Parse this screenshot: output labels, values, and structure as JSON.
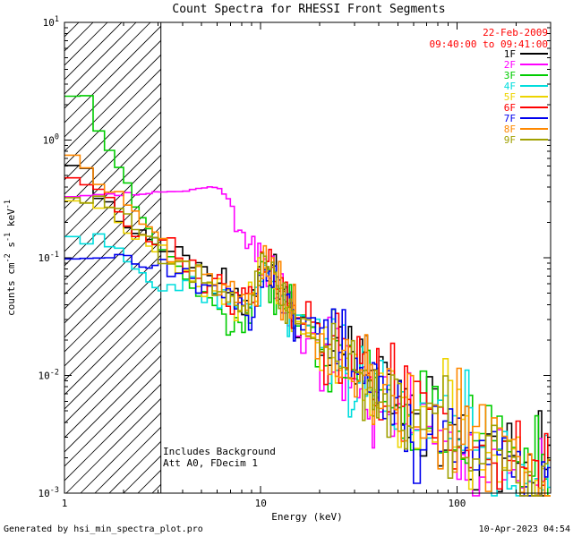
{
  "footer": {
    "left": "Generated by hsi_min_spectra_plot.pro",
    "right": "10-Apr-2023 04:54"
  },
  "chart_data": {
    "type": "line",
    "subtype": "stairstep-spectra",
    "title": "Count Spectra for RHESSI Front Segments",
    "xlabel": "Energy (keV)",
    "ylabel": "counts cm^-2 s^-1 keV^-1",
    "xscale": "log",
    "yscale": "log",
    "xlim": [
      1,
      300
    ],
    "ylim": [
      0.001,
      10
    ],
    "xticks": [
      1,
      10,
      100
    ],
    "yticks_exp": [
      -3,
      -2,
      -1,
      0,
      1
    ],
    "grid": false,
    "legend_position": "top-right-inside",
    "observation": {
      "date": "22-Feb-2009",
      "time_range": "09:40:00 to 09:41:00"
    },
    "annotations": {
      "line1": "Includes Background",
      "line2": "Att A0, FDecim 1"
    },
    "hatch_region": {
      "from": 1,
      "to": 3.1
    },
    "bins": [
      {
        "to": 3,
        "step": 0.2
      },
      {
        "to": 15,
        "step": 0.3334
      },
      {
        "to": 40,
        "step": 1
      },
      {
        "to": 60,
        "step": 2
      },
      {
        "to": 120,
        "step": 5
      },
      {
        "to": 300,
        "step": 10
      }
    ],
    "noise": {
      "breaks": [
        3,
        9,
        20,
        60
      ],
      "sigmas": [
        0.07,
        0.15,
        0.25,
        0.42,
        0.52
      ]
    },
    "series": [
      {
        "name": "1F",
        "color": "#000000",
        "anchors": [
          [
            1.0,
            0.62
          ],
          [
            1.3,
            0.55
          ],
          [
            1.6,
            0.32
          ],
          [
            2.0,
            0.18
          ],
          [
            2.5,
            0.16
          ],
          [
            3.0,
            0.14
          ],
          [
            4.0,
            0.1
          ],
          [
            5.0,
            0.072
          ],
          [
            6.5,
            0.055
          ],
          [
            8.0,
            0.045
          ],
          [
            9.3,
            0.05
          ],
          [
            10.5,
            0.1
          ],
          [
            11.5,
            0.07
          ],
          [
            13,
            0.05
          ],
          [
            15,
            0.035
          ],
          [
            20,
            0.024
          ],
          [
            30,
            0.013
          ],
          [
            50,
            0.0065
          ],
          [
            80,
            0.004
          ],
          [
            120,
            0.0027
          ],
          [
            200,
            0.0016
          ],
          [
            300,
            0.0011
          ]
        ]
      },
      {
        "name": "2F",
        "color": "#FF00FF",
        "smooth_below": 7.2,
        "anchors": [
          [
            1.0,
            0.33
          ],
          [
            1.5,
            0.34
          ],
          [
            2.5,
            0.35
          ],
          [
            3.5,
            0.36
          ],
          [
            4.5,
            0.38
          ],
          [
            5.5,
            0.4
          ],
          [
            6.2,
            0.38
          ],
          [
            7.0,
            0.3
          ],
          [
            7.8,
            0.2
          ],
          [
            8.5,
            0.13
          ],
          [
            9.3,
            0.09
          ],
          [
            10.5,
            0.095
          ],
          [
            11.5,
            0.065
          ],
          [
            13,
            0.045
          ],
          [
            15,
            0.03
          ],
          [
            20,
            0.018
          ],
          [
            30,
            0.01
          ],
          [
            50,
            0.005
          ],
          [
            80,
            0.003
          ],
          [
            120,
            0.0022
          ],
          [
            200,
            0.0013
          ],
          [
            300,
            0.001
          ]
        ]
      },
      {
        "name": "3F",
        "color": "#00CC00",
        "anchors": [
          [
            1.0,
            1.8
          ],
          [
            1.15,
            3.2
          ],
          [
            1.3,
            2.2
          ],
          [
            1.5,
            1.2
          ],
          [
            1.7,
            0.8
          ],
          [
            2.0,
            0.5
          ],
          [
            2.3,
            0.28
          ],
          [
            2.7,
            0.17
          ],
          [
            3.2,
            0.11
          ],
          [
            4.0,
            0.065
          ],
          [
            5.0,
            0.045
          ],
          [
            6.5,
            0.032
          ],
          [
            8.0,
            0.026
          ],
          [
            9.3,
            0.035
          ],
          [
            10.5,
            0.085
          ],
          [
            11.5,
            0.06
          ],
          [
            13,
            0.045
          ],
          [
            15,
            0.03
          ],
          [
            20,
            0.02
          ],
          [
            30,
            0.011
          ],
          [
            50,
            0.0058
          ],
          [
            80,
            0.0036
          ],
          [
            120,
            0.0025
          ],
          [
            200,
            0.0015
          ],
          [
            300,
            0.001
          ]
        ]
      },
      {
        "name": "4F",
        "color": "#00DDDD",
        "anchors": [
          [
            1.0,
            0.17
          ],
          [
            1.4,
            0.155
          ],
          [
            1.8,
            0.12
          ],
          [
            2.2,
            0.09
          ],
          [
            2.8,
            0.062
          ],
          [
            3.5,
            0.075
          ],
          [
            4.5,
            0.06
          ],
          [
            6.0,
            0.048
          ],
          [
            8.0,
            0.04
          ],
          [
            9.3,
            0.045
          ],
          [
            10.5,
            0.09
          ],
          [
            11.5,
            0.065
          ],
          [
            13,
            0.048
          ],
          [
            15,
            0.032
          ],
          [
            20,
            0.021
          ],
          [
            30,
            0.012
          ],
          [
            50,
            0.006
          ],
          [
            80,
            0.0038
          ],
          [
            120,
            0.0026
          ],
          [
            200,
            0.0015
          ],
          [
            300,
            0.001
          ]
        ]
      },
      {
        "name": "5F",
        "color": "#EDD400",
        "anchors": [
          [
            1.0,
            0.34
          ],
          [
            1.4,
            0.3
          ],
          [
            1.8,
            0.22
          ],
          [
            2.2,
            0.15
          ],
          [
            2.8,
            0.11
          ],
          [
            3.5,
            0.085
          ],
          [
            4.5,
            0.065
          ],
          [
            6.0,
            0.05
          ],
          [
            8.0,
            0.04
          ],
          [
            9.3,
            0.045
          ],
          [
            10.5,
            0.09
          ],
          [
            11.5,
            0.062
          ],
          [
            13,
            0.046
          ],
          [
            15,
            0.031
          ],
          [
            20,
            0.021
          ],
          [
            30,
            0.0115
          ],
          [
            50,
            0.006
          ],
          [
            80,
            0.0037
          ],
          [
            120,
            0.0026
          ],
          [
            200,
            0.0015
          ],
          [
            300,
            0.001
          ]
        ]
      },
      {
        "name": "6F",
        "color": "#FF0000",
        "anchors": [
          [
            1.0,
            0.5
          ],
          [
            1.4,
            0.44
          ],
          [
            1.8,
            0.26
          ],
          [
            2.2,
            0.16
          ],
          [
            2.8,
            0.135
          ],
          [
            3.5,
            0.1
          ],
          [
            4.5,
            0.075
          ],
          [
            6.0,
            0.055
          ],
          [
            8.0,
            0.042
          ],
          [
            9.3,
            0.05
          ],
          [
            10.5,
            0.105
          ],
          [
            11.5,
            0.075
          ],
          [
            13,
            0.05
          ],
          [
            15,
            0.034
          ],
          [
            20,
            0.023
          ],
          [
            30,
            0.0125
          ],
          [
            50,
            0.0065
          ],
          [
            80,
            0.004
          ],
          [
            120,
            0.0027
          ],
          [
            200,
            0.0016
          ],
          [
            300,
            0.0011
          ]
        ]
      },
      {
        "name": "7F",
        "color": "#0000EE",
        "anchors": [
          [
            1.0,
            0.092
          ],
          [
            1.5,
            0.1
          ],
          [
            2.0,
            0.11
          ],
          [
            2.5,
            0.085
          ],
          [
            3.0,
            0.09
          ],
          [
            4.0,
            0.07
          ],
          [
            5.0,
            0.058
          ],
          [
            6.5,
            0.048
          ],
          [
            8.0,
            0.038
          ],
          [
            9.0,
            0.022
          ],
          [
            9.8,
            0.04
          ],
          [
            10.5,
            0.088
          ],
          [
            11.5,
            0.065
          ],
          [
            13,
            0.047
          ],
          [
            15,
            0.032
          ],
          [
            20,
            0.022
          ],
          [
            30,
            0.012
          ],
          [
            50,
            0.0062
          ],
          [
            80,
            0.0038
          ],
          [
            120,
            0.0026
          ],
          [
            200,
            0.0015
          ],
          [
            300,
            0.001
          ]
        ]
      },
      {
        "name": "8F",
        "color": "#FF8800",
        "anchors": [
          [
            1.0,
            0.72
          ],
          [
            1.3,
            0.6
          ],
          [
            1.6,
            0.38
          ],
          [
            2.0,
            0.3
          ],
          [
            2.4,
            0.21
          ],
          [
            2.9,
            0.16
          ],
          [
            3.5,
            0.115
          ],
          [
            4.5,
            0.08
          ],
          [
            6.0,
            0.058
          ],
          [
            8.0,
            0.044
          ],
          [
            9.3,
            0.05
          ],
          [
            10.5,
            0.098
          ],
          [
            11.5,
            0.07
          ],
          [
            13,
            0.05
          ],
          [
            15,
            0.033
          ],
          [
            20,
            0.022
          ],
          [
            30,
            0.012
          ],
          [
            50,
            0.0062
          ],
          [
            80,
            0.0038
          ],
          [
            120,
            0.0026
          ],
          [
            200,
            0.0015
          ],
          [
            300,
            0.001
          ]
        ]
      },
      {
        "name": "9F",
        "color": "#A0A000",
        "anchors": [
          [
            1.0,
            0.34
          ],
          [
            1.5,
            0.31
          ],
          [
            2.0,
            0.26
          ],
          [
            2.5,
            0.16
          ],
          [
            3.0,
            0.125
          ],
          [
            4.0,
            0.085
          ],
          [
            5.0,
            0.065
          ],
          [
            6.5,
            0.05
          ],
          [
            8.0,
            0.04
          ],
          [
            9.3,
            0.046
          ],
          [
            10.5,
            0.092
          ],
          [
            11.5,
            0.066
          ],
          [
            13,
            0.047
          ],
          [
            15,
            0.032
          ],
          [
            20,
            0.021
          ],
          [
            30,
            0.0115
          ],
          [
            50,
            0.006
          ],
          [
            80,
            0.0037
          ],
          [
            120,
            0.0025
          ],
          [
            200,
            0.0015
          ],
          [
            300,
            0.001
          ]
        ]
      }
    ]
  }
}
